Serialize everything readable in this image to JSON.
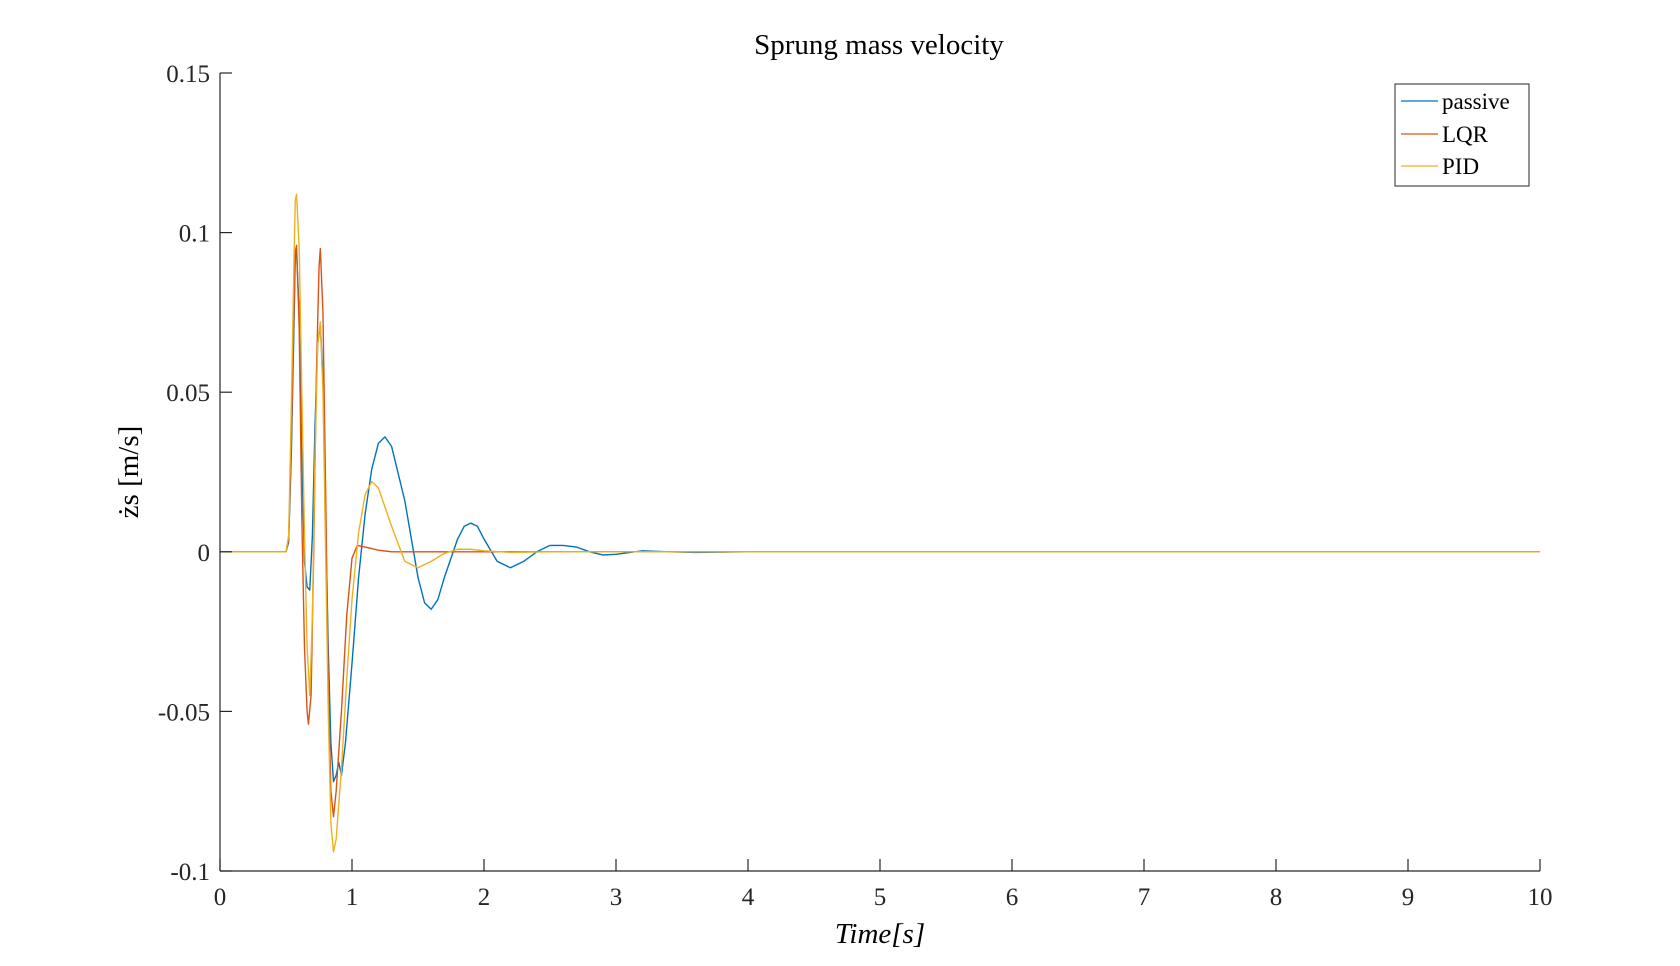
{
  "chart_data": {
    "type": "line",
    "title": "Sprung mass velocity",
    "xlabel": "Time[s]",
    "ylabel": "żs [m/s]",
    "xlim": [
      0,
      10
    ],
    "ylim": [
      -0.1,
      0.15
    ],
    "xticks": [
      0,
      1,
      2,
      3,
      4,
      5,
      6,
      7,
      8,
      9,
      10
    ],
    "xtick_labels": [
      "0",
      "1",
      "2",
      "3",
      "4",
      "5",
      "6",
      "7",
      "8",
      "9",
      "10"
    ],
    "yticks": [
      -0.1,
      -0.05,
      0,
      0.05,
      0.1,
      0.15
    ],
    "ytick_labels": [
      "-0.1",
      "-0.05",
      "0",
      "0.05",
      "0.1",
      "0.15"
    ],
    "grid": false,
    "legend_position": "top-right",
    "series": [
      {
        "name": "passive",
        "color": "#0072BD",
        "points": [
          [
            0,
            0
          ],
          [
            0.5,
            0
          ],
          [
            0.52,
            0.003
          ],
          [
            0.54,
            0.03
          ],
          [
            0.56,
            0.07
          ],
          [
            0.57,
            0.092
          ],
          [
            0.58,
            0.094
          ],
          [
            0.6,
            0.075
          ],
          [
            0.62,
            0.03
          ],
          [
            0.64,
            -0.003
          ],
          [
            0.66,
            -0.011
          ],
          [
            0.68,
            -0.012
          ],
          [
            0.7,
            0.005
          ],
          [
            0.72,
            0.04
          ],
          [
            0.74,
            0.065
          ],
          [
            0.76,
            0.071
          ],
          [
            0.78,
            0.055
          ],
          [
            0.8,
            0.01
          ],
          [
            0.82,
            -0.03
          ],
          [
            0.84,
            -0.06
          ],
          [
            0.86,
            -0.072
          ],
          [
            0.88,
            -0.07
          ],
          [
            0.9,
            -0.066
          ],
          [
            0.92,
            -0.07
          ],
          [
            0.95,
            -0.06
          ],
          [
            1.0,
            -0.035
          ],
          [
            1.05,
            -0.008
          ],
          [
            1.1,
            0.012
          ],
          [
            1.15,
            0.026
          ],
          [
            1.2,
            0.034
          ],
          [
            1.25,
            0.036
          ],
          [
            1.3,
            0.033
          ],
          [
            1.4,
            0.016
          ],
          [
            1.5,
            -0.008
          ],
          [
            1.55,
            -0.016
          ],
          [
            1.6,
            -0.018
          ],
          [
            1.65,
            -0.015
          ],
          [
            1.7,
            -0.008
          ],
          [
            1.8,
            0.004
          ],
          [
            1.85,
            0.008
          ],
          [
            1.9,
            0.009
          ],
          [
            1.95,
            0.008
          ],
          [
            2.0,
            0.004
          ],
          [
            2.1,
            -0.003
          ],
          [
            2.2,
            -0.005
          ],
          [
            2.3,
            -0.003
          ],
          [
            2.4,
            0.0
          ],
          [
            2.5,
            0.002
          ],
          [
            2.6,
            0.002
          ],
          [
            2.7,
            0.0015
          ],
          [
            2.8,
            0.0
          ],
          [
            2.9,
            -0.001
          ],
          [
            3.0,
            -0.0008
          ],
          [
            3.2,
            0.0003
          ],
          [
            3.4,
            0.0
          ],
          [
            3.6,
            -0.0002
          ],
          [
            4.0,
            0.0
          ],
          [
            10,
            0
          ]
        ]
      },
      {
        "name": "LQR",
        "color": "#D95319",
        "points": [
          [
            0,
            0
          ],
          [
            0.5,
            0
          ],
          [
            0.52,
            0.004
          ],
          [
            0.54,
            0.035
          ],
          [
            0.56,
            0.075
          ],
          [
            0.57,
            0.094
          ],
          [
            0.58,
            0.096
          ],
          [
            0.6,
            0.07
          ],
          [
            0.62,
            0.01
          ],
          [
            0.64,
            -0.03
          ],
          [
            0.66,
            -0.05
          ],
          [
            0.67,
            -0.054
          ],
          [
            0.69,
            -0.045
          ],
          [
            0.71,
            0.0
          ],
          [
            0.73,
            0.055
          ],
          [
            0.75,
            0.089
          ],
          [
            0.76,
            0.095
          ],
          [
            0.78,
            0.075
          ],
          [
            0.8,
            0.02
          ],
          [
            0.82,
            -0.04
          ],
          [
            0.84,
            -0.075
          ],
          [
            0.86,
            -0.083
          ],
          [
            0.88,
            -0.075
          ],
          [
            0.92,
            -0.05
          ],
          [
            0.96,
            -0.02
          ],
          [
            1.0,
            -0.002
          ],
          [
            1.04,
            0.002
          ],
          [
            1.1,
            0.0015
          ],
          [
            1.2,
            0.0005
          ],
          [
            1.3,
            0.0
          ],
          [
            10,
            0
          ]
        ]
      },
      {
        "name": "PID",
        "color": "#EDB120",
        "points": [
          [
            0,
            0
          ],
          [
            0.5,
            0
          ],
          [
            0.52,
            0.005
          ],
          [
            0.54,
            0.045
          ],
          [
            0.56,
            0.09
          ],
          [
            0.57,
            0.11
          ],
          [
            0.58,
            0.112
          ],
          [
            0.6,
            0.095
          ],
          [
            0.62,
            0.05
          ],
          [
            0.64,
            0.005
          ],
          [
            0.66,
            -0.03
          ],
          [
            0.68,
            -0.045
          ],
          [
            0.7,
            -0.02
          ],
          [
            0.72,
            0.03
          ],
          [
            0.74,
            0.065
          ],
          [
            0.76,
            0.072
          ],
          [
            0.78,
            0.05
          ],
          [
            0.8,
            0.0
          ],
          [
            0.82,
            -0.05
          ],
          [
            0.84,
            -0.085
          ],
          [
            0.86,
            -0.094
          ],
          [
            0.88,
            -0.09
          ],
          [
            0.92,
            -0.068
          ],
          [
            0.96,
            -0.04
          ],
          [
            1.0,
            -0.015
          ],
          [
            1.05,
            0.006
          ],
          [
            1.1,
            0.018
          ],
          [
            1.15,
            0.022
          ],
          [
            1.2,
            0.02
          ],
          [
            1.3,
            0.008
          ],
          [
            1.4,
            -0.003
          ],
          [
            1.5,
            -0.005
          ],
          [
            1.6,
            -0.003
          ],
          [
            1.7,
            -0.0005
          ],
          [
            1.8,
            0.0008
          ],
          [
            1.9,
            0.0008
          ],
          [
            2.0,
            0.0003
          ],
          [
            2.2,
            -0.0002
          ],
          [
            2.5,
            0.0
          ],
          [
            10,
            0
          ]
        ]
      }
    ]
  }
}
